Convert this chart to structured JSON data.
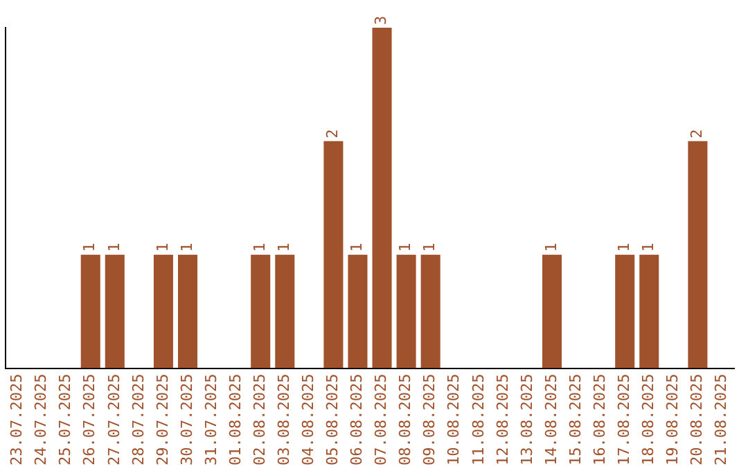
{
  "chart_data": {
    "type": "bar",
    "categories": [
      "23.07.2025",
      "24.07.2025",
      "25.07.2025",
      "26.07.2025",
      "27.07.2025",
      "28.07.2025",
      "29.07.2025",
      "30.07.2025",
      "31.07.2025",
      "01.08.2025",
      "02.08.2025",
      "03.08.2025",
      "04.08.2025",
      "05.08.2025",
      "06.08.2025",
      "07.08.2025",
      "08.08.2025",
      "09.08.2025",
      "10.08.2025",
      "11.08.2025",
      "12.08.2025",
      "13.08.2025",
      "14.08.2025",
      "15.08.2025",
      "16.08.2025",
      "17.08.2025",
      "18.08.2025",
      "19.08.2025",
      "20.08.2025",
      "21.08.2025"
    ],
    "values": [
      0,
      0,
      0,
      1,
      1,
      0,
      1,
      1,
      0,
      0,
      1,
      1,
      0,
      2,
      1,
      3,
      1,
      1,
      0,
      0,
      0,
      0,
      1,
      0,
      0,
      1,
      1,
      0,
      2,
      0
    ],
    "value_labels": [
      null,
      null,
      null,
      "1",
      "1",
      null,
      "1",
      "1",
      null,
      null,
      "1",
      "1",
      null,
      "2",
      "1",
      "3",
      "1",
      "1",
      null,
      null,
      null,
      null,
      "1",
      null,
      null,
      "1",
      "1",
      null,
      "2",
      null
    ],
    "color": "#a0522d",
    "grid": false,
    "legend": false,
    "tick_labels": "x"
  }
}
